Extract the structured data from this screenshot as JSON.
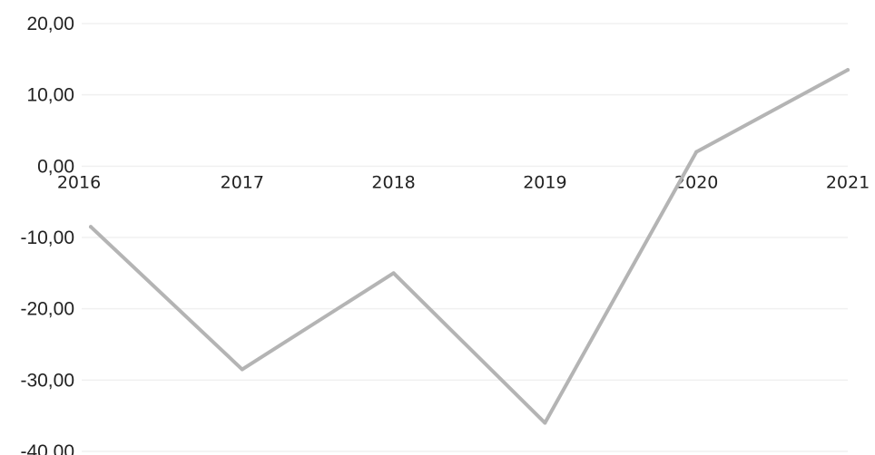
{
  "chart_data": {
    "type": "line",
    "title": "",
    "xlabel": "",
    "ylabel": "",
    "categories": [
      "2016",
      "2017",
      "2018",
      "2019",
      "2020",
      "2021"
    ],
    "series": [
      {
        "values": [
          -8.5,
          -28.5,
          -15.0,
          -36.0,
          2.0,
          13.5
        ]
      }
    ],
    "ylim": [
      -40,
      20
    ],
    "yticks": [
      20,
      10,
      0,
      -10,
      -20,
      -30,
      -40
    ],
    "ytick_labels": [
      "20,00",
      "10,00",
      "0,00",
      "-10,00",
      "-20,00",
      "-30,00",
      "-40,00"
    ],
    "grid": "horizontal",
    "legend": "none",
    "line_color": "#b4b4b4",
    "grid_color": "#f0f0f0"
  }
}
